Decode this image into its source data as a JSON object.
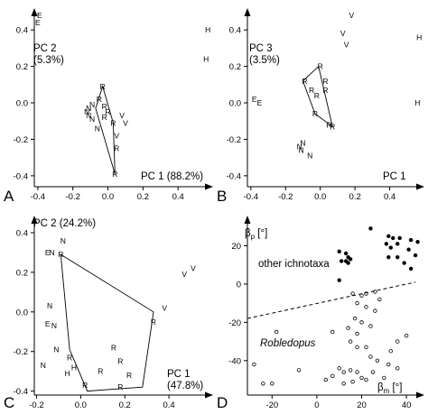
{
  "chart_data": [
    {
      "panel": "A",
      "type": "scatter",
      "xlabel": "PC 1 (88.2%)",
      "ylabel": "PC 2\n(5.3%)",
      "xlim": [
        -0.42,
        0.6
      ],
      "ylim": [
        -0.46,
        0.48
      ],
      "xticks": [
        -0.4,
        -0.2,
        0.0,
        0.2,
        0.4
      ],
      "yticks": [
        -0.4,
        -0.2,
        0.0,
        0.2,
        0.4
      ],
      "points": [
        {
          "x": -0.39,
          "y": 0.48,
          "label": "E"
        },
        {
          "x": -0.4,
          "y": 0.44,
          "label": "E"
        },
        {
          "x": 0.57,
          "y": 0.4,
          "label": "H"
        },
        {
          "x": 0.56,
          "y": 0.24,
          "label": "H"
        },
        {
          "x": -0.03,
          "y": 0.09,
          "label": "R"
        },
        {
          "x": -0.05,
          "y": 0.02,
          "label": "R"
        },
        {
          "x": -0.02,
          "y": -0.02,
          "label": "R"
        },
        {
          "x": 0.0,
          "y": -0.05,
          "label": "R"
        },
        {
          "x": -0.02,
          "y": -0.08,
          "label": "R"
        },
        {
          "x": 0.03,
          "y": -0.11,
          "label": "R"
        },
        {
          "x": 0.05,
          "y": -0.25,
          "label": "R"
        },
        {
          "x": 0.04,
          "y": -0.39,
          "label": "R"
        },
        {
          "x": -0.09,
          "y": -0.01,
          "label": "N"
        },
        {
          "x": -0.11,
          "y": -0.03,
          "label": "N"
        },
        {
          "x": -0.12,
          "y": -0.05,
          "label": "N"
        },
        {
          "x": -0.11,
          "y": -0.07,
          "label": "N"
        },
        {
          "x": -0.09,
          "y": -0.09,
          "label": "N"
        },
        {
          "x": -0.06,
          "y": -0.14,
          "label": "N"
        },
        {
          "x": 0.08,
          "y": -0.07,
          "label": "V"
        },
        {
          "x": 0.1,
          "y": -0.11,
          "label": "V"
        },
        {
          "x": 0.05,
          "y": -0.18,
          "label": "V"
        }
      ],
      "hull": [
        [
          -0.03,
          0.09
        ],
        [
          0.03,
          -0.11
        ],
        [
          0.04,
          -0.39
        ],
        [
          -0.07,
          -0.03
        ]
      ],
      "panel_label": "A"
    },
    {
      "panel": "B",
      "type": "scatter",
      "xlabel": "PC 1",
      "ylabel": "PC 3\n(3.5%)",
      "xlim": [
        -0.42,
        0.6
      ],
      "ylim": [
        -0.46,
        0.48
      ],
      "xticks": [
        -0.4,
        -0.2,
        0.0,
        0.2,
        0.4
      ],
      "yticks": [
        -0.4,
        -0.2,
        0.0,
        0.2,
        0.4
      ],
      "points": [
        {
          "x": 0.18,
          "y": 0.48,
          "label": "V"
        },
        {
          "x": 0.13,
          "y": 0.38,
          "label": "V"
        },
        {
          "x": 0.15,
          "y": 0.32,
          "label": "V"
        },
        {
          "x": 0.57,
          "y": 0.36,
          "label": "H"
        },
        {
          "x": 0.56,
          "y": 0.0,
          "label": "H"
        },
        {
          "x": -0.38,
          "y": 0.02,
          "label": "E"
        },
        {
          "x": -0.35,
          "y": 0.0,
          "label": "E"
        },
        {
          "x": 0.0,
          "y": 0.2,
          "label": "R"
        },
        {
          "x": -0.09,
          "y": 0.12,
          "label": "R"
        },
        {
          "x": 0.03,
          "y": 0.12,
          "label": "R"
        },
        {
          "x": -0.05,
          "y": 0.07,
          "label": "R"
        },
        {
          "x": -0.02,
          "y": 0.04,
          "label": "R"
        },
        {
          "x": -0.03,
          "y": -0.06,
          "label": "R"
        },
        {
          "x": 0.05,
          "y": -0.12,
          "label": "R"
        },
        {
          "x": 0.07,
          "y": -0.13,
          "label": "R"
        },
        {
          "x": 0.03,
          "y": 0.07,
          "label": "R"
        },
        {
          "x": -0.1,
          "y": -0.22,
          "label": "N"
        },
        {
          "x": -0.12,
          "y": -0.24,
          "label": "N"
        },
        {
          "x": -0.11,
          "y": -0.26,
          "label": "N"
        },
        {
          "x": -0.06,
          "y": -0.29,
          "label": "N"
        }
      ],
      "hull": [
        [
          -0.01,
          0.2
        ],
        [
          0.07,
          -0.13
        ],
        [
          -0.03,
          -0.06
        ],
        [
          -0.1,
          0.12
        ]
      ],
      "panel_label": "B"
    },
    {
      "panel": "C",
      "type": "scatter",
      "xlabel": "PC 1\n(47.8%)",
      "ylabel": "PC 2 (24.2%)",
      "xlim": [
        -0.21,
        0.6
      ],
      "ylim": [
        -0.42,
        0.45
      ],
      "xticks": [
        -0.2,
        0.0,
        0.2,
        0.4
      ],
      "yticks": [
        -0.4,
        -0.2,
        0.0,
        0.2,
        0.4
      ],
      "points": [
        {
          "x": -0.08,
          "y": 0.36,
          "label": "N"
        },
        {
          "x": -0.15,
          "y": 0.3,
          "label": "E"
        },
        {
          "x": -0.13,
          "y": 0.3,
          "label": "N"
        },
        {
          "x": -0.09,
          "y": 0.29,
          "label": "R"
        },
        {
          "x": 0.51,
          "y": 0.22,
          "label": "V"
        },
        {
          "x": 0.47,
          "y": 0.19,
          "label": "V"
        },
        {
          "x": 0.38,
          "y": 0.02,
          "label": "V"
        },
        {
          "x": -0.14,
          "y": 0.03,
          "label": "N"
        },
        {
          "x": 0.33,
          "y": -0.05,
          "label": "R"
        },
        {
          "x": -0.15,
          "y": -0.06,
          "label": "E"
        },
        {
          "x": -0.12,
          "y": -0.07,
          "label": "N"
        },
        {
          "x": -0.11,
          "y": -0.19,
          "label": "N"
        },
        {
          "x": 0.15,
          "y": -0.18,
          "label": "R"
        },
        {
          "x": -0.05,
          "y": -0.23,
          "label": "R"
        },
        {
          "x": 0.18,
          "y": -0.25,
          "label": "R"
        },
        {
          "x": -0.17,
          "y": -0.27,
          "label": "N"
        },
        {
          "x": -0.03,
          "y": -0.28,
          "label": "H"
        },
        {
          "x": 0.09,
          "y": -0.3,
          "label": "R"
        },
        {
          "x": 0.22,
          "y": -0.32,
          "label": "R"
        },
        {
          "x": -0.06,
          "y": -0.31,
          "label": "H"
        },
        {
          "x": 0.02,
          "y": -0.37,
          "label": "R"
        },
        {
          "x": 0.18,
          "y": -0.38,
          "label": "R"
        }
      ],
      "hull": [
        [
          -0.09,
          0.29
        ],
        [
          0.33,
          0.0
        ],
        [
          0.28,
          -0.38
        ],
        [
          0.03,
          -0.4
        ],
        [
          -0.05,
          -0.19
        ]
      ],
      "panel_label": "C"
    },
    {
      "panel": "D",
      "type": "scatter",
      "xlabel": "βm [°]",
      "ylabel": "βp [°]",
      "xlim": [
        -31,
        48
      ],
      "ylim": [
        -58,
        32
      ],
      "xticks": [
        -20,
        0,
        20,
        40
      ],
      "yticks": [
        -40,
        -20,
        0,
        20
      ],
      "annotations": [
        "other ichnotaxa",
        "Robledopus"
      ],
      "series": [
        {
          "name": "other ichnotaxa",
          "marker": "filled",
          "points": [
            [
              24,
              29
            ],
            [
              32,
              25
            ],
            [
              34,
              24
            ],
            [
              37,
              24
            ],
            [
              36,
              21
            ],
            [
              42,
              23
            ],
            [
              45,
              22
            ],
            [
              31,
              21
            ],
            [
              33,
              19
            ],
            [
              41,
              18
            ],
            [
              32,
              14
            ],
            [
              36,
              14
            ],
            [
              44,
              15
            ],
            [
              39,
              11
            ],
            [
              42,
              8
            ],
            [
              10,
              17
            ],
            [
              13,
              16
            ],
            [
              14,
              14
            ],
            [
              13,
              12
            ],
            [
              14,
              11
            ],
            [
              11,
              12
            ],
            [
              15,
              13
            ],
            [
              10,
              2
            ]
          ]
        },
        {
          "name": "Robledopus",
          "marker": "open",
          "points": [
            [
              -28,
              -42
            ],
            [
              -24,
              -52
            ],
            [
              -20,
              -52
            ],
            [
              -18,
              -25
            ],
            [
              -8,
              -45
            ],
            [
              7,
              -25
            ],
            [
              16,
              -5
            ],
            [
              20,
              -6
            ],
            [
              22,
              -5
            ],
            [
              26,
              -4
            ],
            [
              28,
              -8
            ],
            [
              18,
              -10
            ],
            [
              22,
              -12
            ],
            [
              26,
              -14
            ],
            [
              17,
              -18
            ],
            [
              20,
              -20
            ],
            [
              24,
              -22
            ],
            [
              14,
              -23
            ],
            [
              18,
              -26
            ],
            [
              15,
              -30
            ],
            [
              18,
              -33
            ],
            [
              22,
              -33
            ],
            [
              24,
              -38
            ],
            [
              27,
              -40
            ],
            [
              33,
              -35
            ],
            [
              36,
              -30
            ],
            [
              40,
              -27
            ],
            [
              32,
              -42
            ],
            [
              36,
              -44
            ],
            [
              10,
              -44
            ],
            [
              12,
              -46
            ],
            [
              15,
              -45
            ],
            [
              18,
              -46
            ],
            [
              20,
              -49
            ],
            [
              25,
              -46
            ],
            [
              22,
              -50
            ],
            [
              30,
              -49
            ],
            [
              16,
              -51
            ],
            [
              7,
              -48
            ],
            [
              12,
              -52
            ],
            [
              4,
              -50
            ]
          ]
        },
        {
          "name": "",
          "type": "line",
          "style": "dashed",
          "points": [
            [
              -31,
              -18
            ],
            [
              44,
              1
            ]
          ]
        }
      ],
      "panel_label": "D"
    }
  ]
}
